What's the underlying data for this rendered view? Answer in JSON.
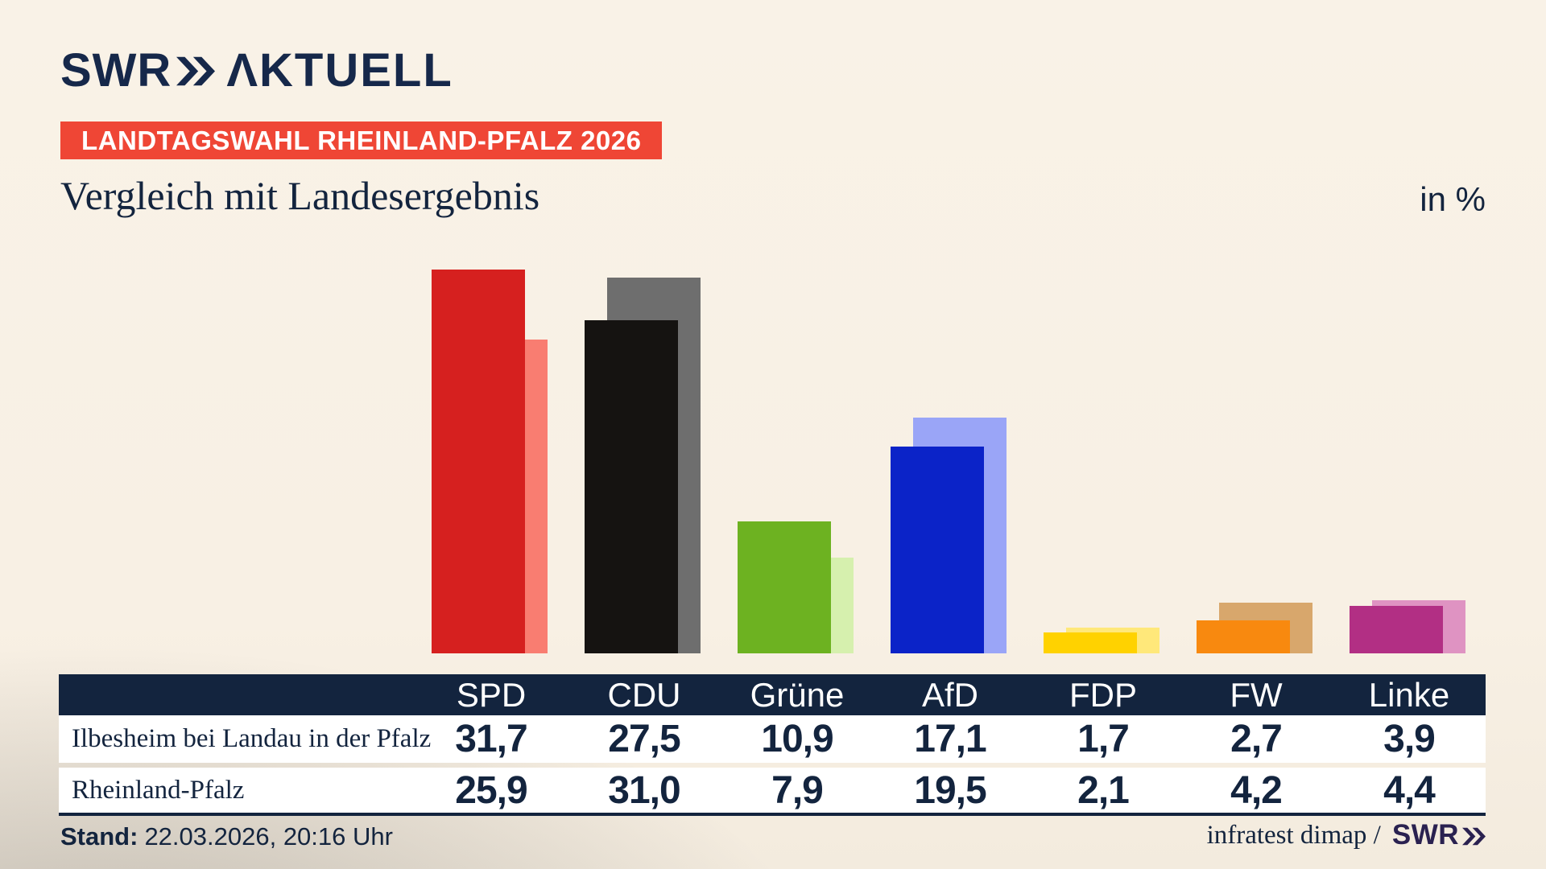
{
  "brand": {
    "name": "SWR",
    "suffix": "ΛKTUELL"
  },
  "badge": {
    "label": "LANDTAGSWAHL RHEINLAND-PFALZ 2026",
    "bg": "#ef4635"
  },
  "footer": {
    "stand_label": "Stand:",
    "stand_value": "22.03.2026, 20:16 Uhr",
    "source": "infratest dimap /",
    "brand": "SWR"
  },
  "colors": {
    "navy": "#13243e",
    "badge_red": "#ef4635",
    "table_header_bg": "#13243e",
    "row_bg": "#ffffff",
    "footer_brand": "#2a2150",
    "background": "#f8f1e5"
  },
  "chart_data": {
    "type": "bar",
    "title": "Vergleich mit Landesergebnis",
    "unit": "in %",
    "categories": [
      "SPD",
      "CDU",
      "Grüne",
      "AfD",
      "FDP",
      "FW",
      "Linke"
    ],
    "series": [
      {
        "name": "Ilbesheim bei Landau in der Pfalz",
        "values": [
          31.7,
          27.5,
          10.9,
          17.1,
          1.7,
          2.7,
          3.9
        ],
        "display": [
          "31,7",
          "27,5",
          "10,9",
          "17,1",
          "1,7",
          "2,7",
          "3,9"
        ],
        "colors": [
          "#d6201f",
          "#151311",
          "#6db221",
          "#0b23c8",
          "#ffd200",
          "#f8890f",
          "#b22f84"
        ]
      },
      {
        "name": "Rheinland-Pfalz",
        "values": [
          25.9,
          31.0,
          7.9,
          19.5,
          2.1,
          4.2,
          4.4
        ],
        "display": [
          "25,9",
          "31,0",
          "7,9",
          "19,5",
          "2,1",
          "4,2",
          "4,4"
        ],
        "colors": [
          "#f97d71",
          "#6e6e6e",
          "#d6f0ae",
          "#9aa5f7",
          "#ffe87a",
          "#d8a76c",
          "#df93c2"
        ]
      }
    ],
    "ylim": [
      0,
      33
    ],
    "grid": false,
    "legend_position": "table-rows"
  }
}
